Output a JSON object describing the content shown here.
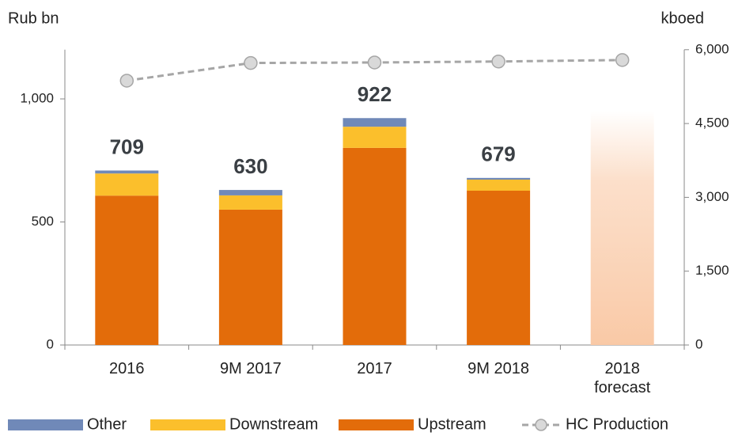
{
  "chart_data": {
    "type": "bar",
    "ylabel": "Rub bn",
    "y2label": "kboed",
    "categories": [
      "2016",
      "9M 2017",
      "2017",
      "9M 2018",
      "2018 forecast"
    ],
    "series": [
      {
        "name": "Other",
        "color": "#7089b8",
        "values": [
          12,
          22,
          35,
          7,
          null
        ]
      },
      {
        "name": "Downstream",
        "color": "#fbbf2c",
        "values": [
          90,
          58,
          86,
          45,
          null
        ]
      },
      {
        "name": "Upstream",
        "color": "#e36c0a",
        "values": [
          607,
          550,
          801,
          627,
          null
        ]
      },
      {
        "name": "HC Production",
        "type": "line",
        "axis": "y2",
        "color": "#a6a6a6",
        "values": [
          5370,
          5730,
          5740,
          5760,
          5790
        ]
      }
    ],
    "totals": [
      709,
      630,
      922,
      679,
      null
    ],
    "ylim": [
      0,
      1200
    ],
    "yticks": [
      0,
      500,
      {
        "value": 1000,
        "label": "1,000"
      }
    ],
    "y2lim": [
      0,
      6000
    ],
    "y2ticks": [
      0,
      {
        "value": 1500,
        "label": "1,500"
      },
      {
        "value": 3000,
        "label": "3,000"
      },
      {
        "value": 4500,
        "label": "4,500"
      },
      {
        "value": 6000,
        "label": "6,000"
      }
    ],
    "grid": false
  }
}
